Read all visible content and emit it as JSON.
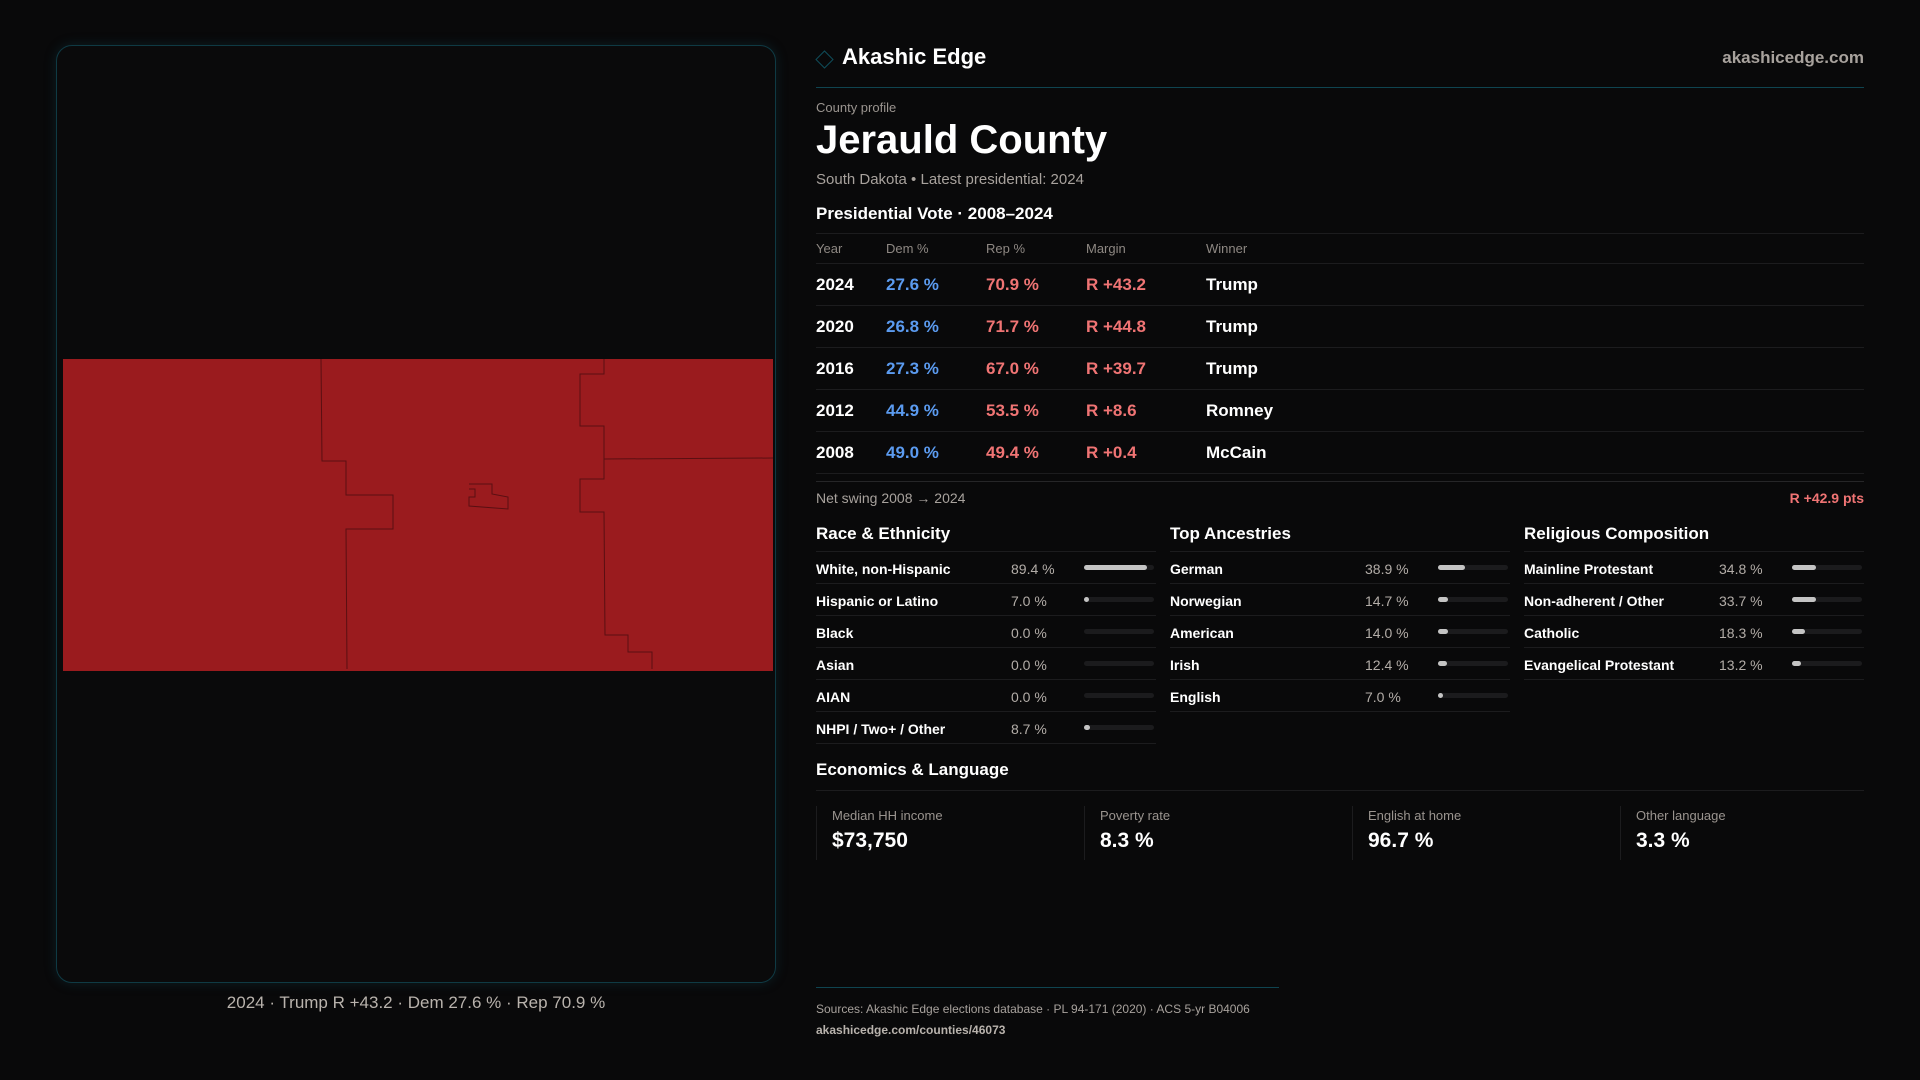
{
  "map": {
    "fill_color": "#9a1b1e",
    "border_color": "#5a0f12",
    "caption": "2024 · Trump R +43.2 · Dem 27.6 % · Rep 70.9 %"
  },
  "header": {
    "brand": "Akashic Edge",
    "site": "akashicedge.com",
    "logo_icon": "diamond-icon"
  },
  "profile": {
    "kicker": "County profile",
    "title": "Jerauld County",
    "subtitle": "South Dakota • Latest presidential: 2024"
  },
  "vote": {
    "heading": "Presidential Vote · 2008–2024",
    "columns": [
      "Year",
      "Dem %",
      "Rep %",
      "Margin",
      "Winner"
    ],
    "rows": [
      {
        "year": "2024",
        "dem": "27.6 %",
        "rep": "70.9 %",
        "margin": "R +43.2",
        "winner": "Trump"
      },
      {
        "year": "2020",
        "dem": "26.8 %",
        "rep": "71.7 %",
        "margin": "R +44.8",
        "winner": "Trump"
      },
      {
        "year": "2016",
        "dem": "27.3 %",
        "rep": "67.0 %",
        "margin": "R +39.7",
        "winner": "Trump"
      },
      {
        "year": "2012",
        "dem": "44.9 %",
        "rep": "53.5 %",
        "margin": "R +8.6",
        "winner": "Romney"
      },
      {
        "year": "2008",
        "dem": "49.0 %",
        "rep": "49.4 %",
        "margin": "R +0.4",
        "winner": "McCain"
      }
    ],
    "swing_label": "Net swing 2008 → 2024",
    "swing_value": "R +42.9 pts"
  },
  "colors": {
    "dem": "#5b9bf0",
    "rep": "#f07474",
    "accent": "#0f4450"
  },
  "race": {
    "heading": "Race & Ethnicity",
    "items": [
      {
        "label": "White, non-Hispanic",
        "value": "89.4 %",
        "pct": 89.4
      },
      {
        "label": "Hispanic or Latino",
        "value": "7.0 %",
        "pct": 7.0
      },
      {
        "label": "Black",
        "value": "0.0 %",
        "pct": 0
      },
      {
        "label": "Asian",
        "value": "0.0 %",
        "pct": 0
      },
      {
        "label": "AIAN",
        "value": "0.0 %",
        "pct": 0
      },
      {
        "label": "NHPI / Two+ / Other",
        "value": "8.7 %",
        "pct": 8.7
      }
    ]
  },
  "ancestry": {
    "heading": "Top Ancestries",
    "items": [
      {
        "label": "German",
        "value": "38.9 %",
        "pct": 38.9
      },
      {
        "label": "Norwegian",
        "value": "14.7 %",
        "pct": 14.7
      },
      {
        "label": "American",
        "value": "14.0 %",
        "pct": 14.0
      },
      {
        "label": "Irish",
        "value": "12.4 %",
        "pct": 12.4
      },
      {
        "label": "English",
        "value": "7.0 %",
        "pct": 7.0
      }
    ]
  },
  "religion": {
    "heading": "Religious Composition",
    "items": [
      {
        "label": "Mainline Protestant",
        "value": "34.8 %",
        "pct": 34.8
      },
      {
        "label": "Non-adherent / Other",
        "value": "33.7 %",
        "pct": 33.7
      },
      {
        "label": "Catholic",
        "value": "18.3 %",
        "pct": 18.3
      },
      {
        "label": "Evangelical Protestant",
        "value": "13.2 %",
        "pct": 13.2
      }
    ]
  },
  "economics": {
    "heading": "Economics & Language",
    "stats": [
      {
        "label": "Median HH income",
        "value": "$73,750"
      },
      {
        "label": "Poverty rate",
        "value": "8.3 %"
      },
      {
        "label": "English at home",
        "value": "96.7 %"
      },
      {
        "label": "Other language",
        "value": "3.3 %"
      }
    ]
  },
  "footer": {
    "sources": "Sources: Akashic Edge elections database · PL 94-171 (2020) · ACS 5-yr B04006",
    "url": "akashicedge.com/counties/46073"
  }
}
